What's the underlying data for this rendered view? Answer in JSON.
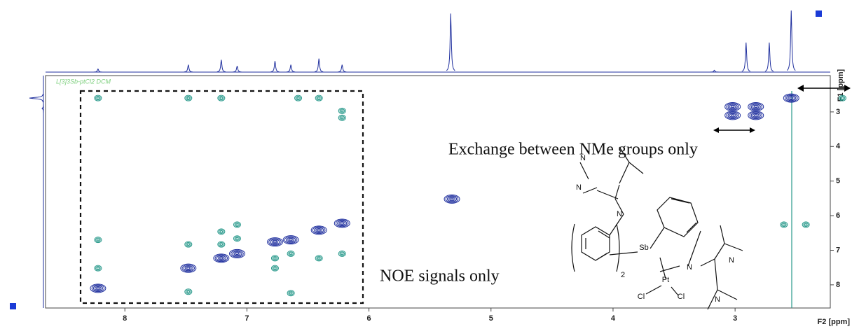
{
  "chart_data": {
    "type": "contour",
    "sample_label": "L[3]3Sb-ptCl2 DCM",
    "xlabel": "F2 [ppm]",
    "ylabel": "F1 [ppm]",
    "xlim": [
      8.65,
      2.22
    ],
    "ylim": [
      1.95,
      8.67
    ],
    "xticks": [
      8,
      7,
      6,
      5,
      4,
      3
    ],
    "yticks": [
      3,
      4,
      5,
      6,
      7,
      8
    ],
    "diagonal_peaks": {
      "color": "#1f2f9e",
      "x": [
        8.22,
        7.48,
        7.21,
        7.08,
        6.77,
        6.64,
        6.41,
        6.22,
        5.32,
        3.02,
        2.83,
        3.02,
        2.83,
        2.54
      ],
      "y": [
        8.1,
        7.52,
        7.23,
        7.1,
        6.76,
        6.7,
        6.42,
        6.22,
        5.52,
        2.85,
        2.85,
        3.1,
        3.1,
        2.6
      ]
    },
    "cross_peaks": {
      "color": "#2a9a8c",
      "x": [
        8.22,
        7.48,
        7.21,
        6.58,
        6.41,
        6.22,
        6.22,
        8.22,
        8.22,
        7.48,
        7.21,
        7.21,
        7.08,
        7.08,
        6.77,
        6.77,
        6.64,
        6.64,
        6.41,
        6.22,
        7.48,
        2.42,
        2.6,
        2.12
      ],
      "y": [
        2.6,
        2.6,
        2.6,
        2.6,
        2.6,
        2.97,
        3.17,
        6.7,
        7.52,
        6.83,
        6.46,
        6.83,
        6.26,
        6.66,
        7.23,
        7.52,
        7.1,
        8.24,
        7.23,
        7.1,
        8.2,
        6.26,
        6.26,
        2.6
      ]
    },
    "f2_projection": {
      "x": [
        8.22,
        7.48,
        7.21,
        7.08,
        6.77,
        6.64,
        6.41,
        6.22,
        5.33,
        3.17,
        2.91,
        2.72,
        2.54
      ],
      "heights": [
        5,
        12,
        20,
        10,
        18,
        12,
        22,
        12,
        95,
        3,
        48,
        48,
        100
      ]
    },
    "f1_projection": {
      "y": [
        2.6,
        2.9
      ],
      "heights": [
        100,
        10
      ]
    },
    "annotations": [
      "Exchange between NMe groups only",
      "NOE signals only"
    ],
    "structure": {
      "atoms": [
        "N",
        "N",
        "N",
        "Sb",
        "Pt",
        "N",
        "N",
        "N",
        "Cl",
        "Cl"
      ],
      "subscript": "2"
    }
  }
}
